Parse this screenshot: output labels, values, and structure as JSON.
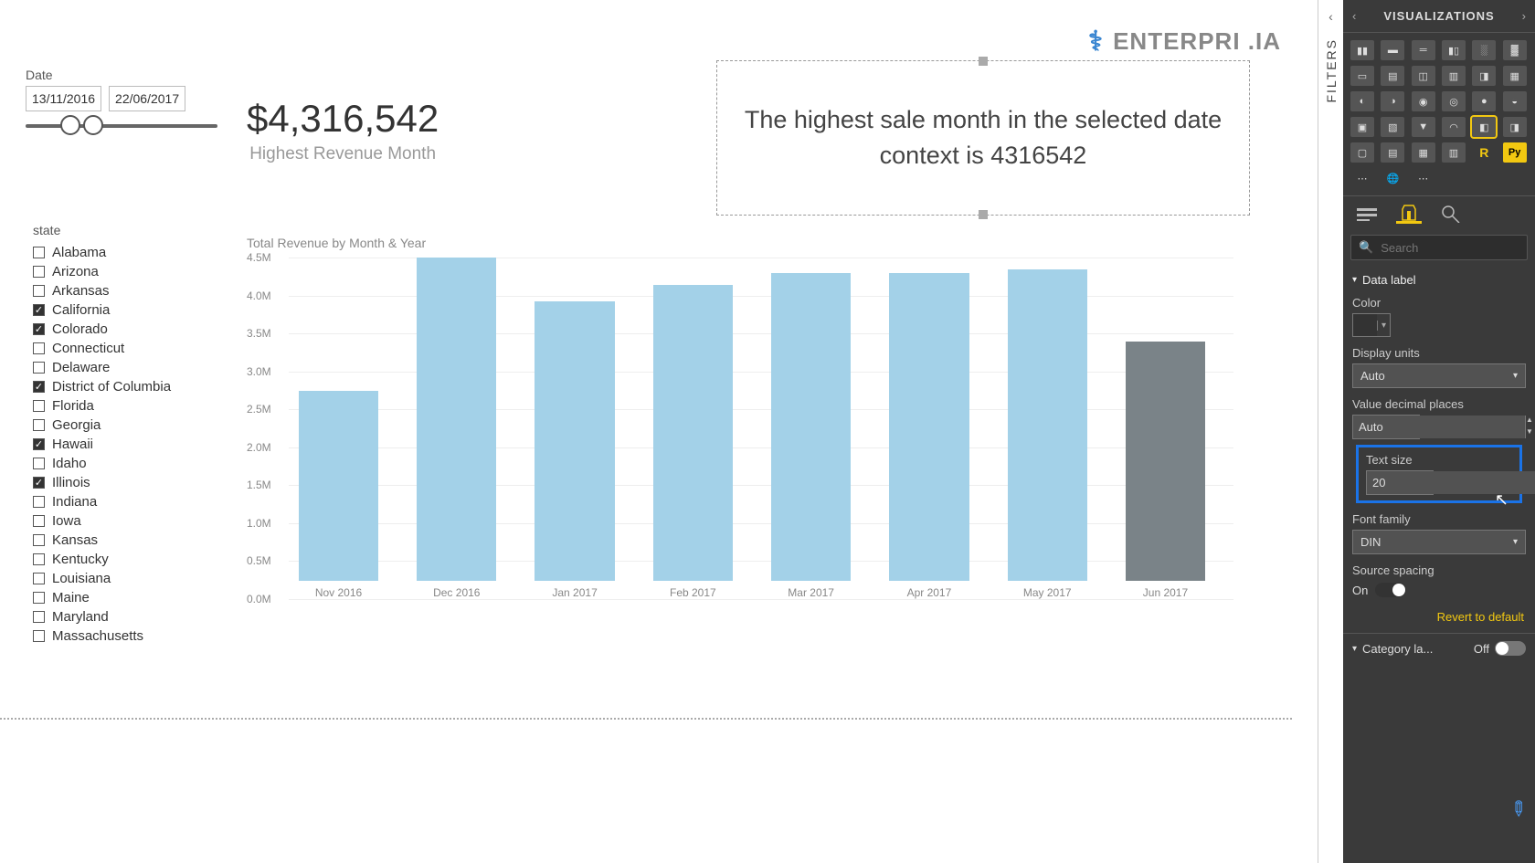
{
  "logo_text": "ENTERPRI      .IA",
  "date_slicer": {
    "header": "Date",
    "start": "13/11/2016",
    "end": "22/06/2017",
    "handle1_pct": 18,
    "handle2_pct": 30
  },
  "card": {
    "value": "$4,316,542",
    "label": "Highest Revenue Month"
  },
  "smart_narrative": "The highest sale month in the selected date context is 4316542",
  "state_slicer": {
    "header": "state",
    "items": [
      {
        "label": "Alabama",
        "checked": false
      },
      {
        "label": "Arizona",
        "checked": false
      },
      {
        "label": "Arkansas",
        "checked": false
      },
      {
        "label": "California",
        "checked": true
      },
      {
        "label": "Colorado",
        "checked": true
      },
      {
        "label": "Connecticut",
        "checked": false
      },
      {
        "label": "Delaware",
        "checked": false
      },
      {
        "label": "District of Columbia",
        "checked": true
      },
      {
        "label": "Florida",
        "checked": false
      },
      {
        "label": "Georgia",
        "checked": false
      },
      {
        "label": "Hawaii",
        "checked": true
      },
      {
        "label": "Idaho",
        "checked": false
      },
      {
        "label": "Illinois",
        "checked": true
      },
      {
        "label": "Indiana",
        "checked": false
      },
      {
        "label": "Iowa",
        "checked": false
      },
      {
        "label": "Kansas",
        "checked": false
      },
      {
        "label": "Kentucky",
        "checked": false
      },
      {
        "label": "Louisiana",
        "checked": false
      },
      {
        "label": "Maine",
        "checked": false
      },
      {
        "label": "Maryland",
        "checked": false
      },
      {
        "label": "Massachusetts",
        "checked": false
      }
    ]
  },
  "chart": {
    "type": "bar",
    "title": "Total Revenue by Month & Year",
    "y_ticks": [
      {
        "label": "4.5M",
        "value": 4.5
      },
      {
        "label": "4.0M",
        "value": 4.0
      },
      {
        "label": "3.5M",
        "value": 3.5
      },
      {
        "label": "3.0M",
        "value": 3.0
      },
      {
        "label": "2.5M",
        "value": 2.5
      },
      {
        "label": "2.0M",
        "value": 2.0
      },
      {
        "label": "1.5M",
        "value": 1.5
      },
      {
        "label": "1.0M",
        "value": 1.0
      },
      {
        "label": "0.5M",
        "value": 0.5
      },
      {
        "label": "0.0M",
        "value": 0.0
      }
    ],
    "ymax": 4.5,
    "bar_color": "#a3d1e8",
    "bar_color_alt": "#7a8388",
    "bars": [
      {
        "x": "Nov 2016",
        "v": 2.5,
        "alt": false
      },
      {
        "x": "Dec 2016",
        "v": 4.32,
        "alt": false
      },
      {
        "x": "Jan 2017",
        "v": 3.68,
        "alt": false
      },
      {
        "x": "Feb 2017",
        "v": 3.9,
        "alt": false
      },
      {
        "x": "Mar 2017",
        "v": 4.05,
        "alt": false
      },
      {
        "x": "Apr 2017",
        "v": 4.05,
        "alt": false
      },
      {
        "x": "May 2017",
        "v": 4.1,
        "alt": false
      },
      {
        "x": "Jun 2017",
        "v": 3.15,
        "alt": true
      }
    ]
  },
  "viz_panel": {
    "title": "VISUALIZATIONS",
    "search_placeholder": "Search",
    "section_data_label": "Data label",
    "color_label": "Color",
    "color_value": "#333333",
    "display_units_label": "Display units",
    "display_units_value": "Auto",
    "decimal_label": "Value decimal places",
    "decimal_value": "Auto",
    "text_size_label": "Text size",
    "text_size_value": "20",
    "font_family_label": "Font family",
    "font_family_value": "DIN",
    "source_spacing_label": "Source spacing",
    "source_spacing_on": "On",
    "revert_label": "Revert to default",
    "category_label": "Category la...",
    "category_off": "Off"
  },
  "filters_label": "FILTERS"
}
